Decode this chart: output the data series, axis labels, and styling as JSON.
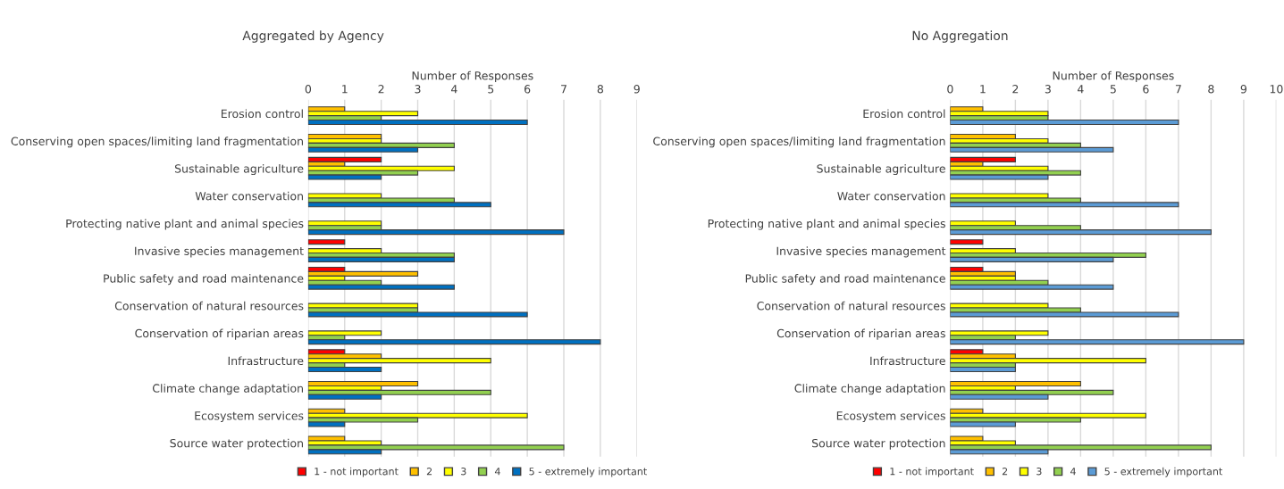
{
  "chart_data": [
    {
      "type": "bar",
      "orientation": "horizontal",
      "title": "Aggregated by Agency",
      "xlabel": "Number of Responses",
      "xlim": [
        0,
        9
      ],
      "xticks": [
        0,
        1,
        2,
        3,
        4,
        5,
        6,
        7,
        8,
        9
      ],
      "grid": "x",
      "legend": "bottom",
      "categories": [
        "Erosion control",
        "Conserving open spaces/limiting land fragmentation",
        "Sustainable agriculture",
        "Water conservation",
        "Protecting native plant and animal species",
        "Invasive species management",
        "Public safety and road maintenance",
        "Conservation of natural resources",
        "Conservation of riparian areas",
        "Infrastructure",
        "Climate change adaptation",
        "Ecosystem services",
        "Source water protection"
      ],
      "series": [
        {
          "name": "1 - not important",
          "color": "#ff0000",
          "values": [
            null,
            null,
            2,
            null,
            null,
            1,
            1,
            null,
            null,
            1,
            null,
            null,
            null
          ]
        },
        {
          "name": "2",
          "color": "#ffc000",
          "values": [
            1,
            2,
            1,
            null,
            null,
            null,
            3,
            null,
            null,
            2,
            3,
            1,
            1
          ]
        },
        {
          "name": "3",
          "color": "#ffff00",
          "values": [
            3,
            2,
            4,
            2,
            2,
            2,
            1,
            3,
            2,
            5,
            2,
            6,
            2
          ]
        },
        {
          "name": "4",
          "color": "#92d050",
          "values": [
            2,
            4,
            3,
            4,
            2,
            4,
            2,
            3,
            1,
            1,
            5,
            3,
            7
          ]
        },
        {
          "name": "5 - extremely important",
          "color": "#0070c0",
          "values": [
            6,
            3,
            2,
            5,
            7,
            4,
            4,
            6,
            8,
            2,
            2,
            1,
            2
          ]
        }
      ]
    },
    {
      "type": "bar",
      "orientation": "horizontal",
      "title": "No Aggregation",
      "xlabel": "Number of Responses",
      "xlim": [
        0,
        10
      ],
      "xticks": [
        0,
        1,
        2,
        3,
        4,
        5,
        6,
        7,
        8,
        9,
        10
      ],
      "grid": "x",
      "legend": "bottom",
      "categories": [
        "Erosion control",
        "Conserving open spaces/limiting land fragmentation",
        "Sustainable agriculture",
        "Water conservation",
        "Protecting native plant and animal species",
        "Invasive species management",
        "Public safety and road maintenance",
        "Conservation of natural resources",
        "Conservation of riparian areas",
        "Infrastructure",
        "Climate change adaptation",
        "Ecosystem services",
        "Source water protection"
      ],
      "series": [
        {
          "name": "1 - not important",
          "color": "#ff0000",
          "values": [
            null,
            null,
            2,
            null,
            null,
            1,
            1,
            null,
            null,
            1,
            null,
            null,
            null
          ]
        },
        {
          "name": "2",
          "color": "#ffc000",
          "values": [
            1,
            2,
            1,
            null,
            null,
            null,
            2,
            null,
            null,
            2,
            4,
            1,
            1
          ]
        },
        {
          "name": "3",
          "color": "#ffff00",
          "values": [
            3,
            3,
            3,
            3,
            2,
            2,
            2,
            3,
            3,
            6,
            2,
            6,
            2
          ]
        },
        {
          "name": "4",
          "color": "#92d050",
          "values": [
            3,
            4,
            4,
            4,
            4,
            6,
            3,
            4,
            2,
            2,
            5,
            4,
            8
          ]
        },
        {
          "name": "5 - extremely important",
          "color": "#5b9bd5",
          "values": [
            7,
            5,
            3,
            7,
            8,
            5,
            5,
            7,
            9,
            2,
            3,
            2,
            3
          ]
        }
      ]
    }
  ]
}
